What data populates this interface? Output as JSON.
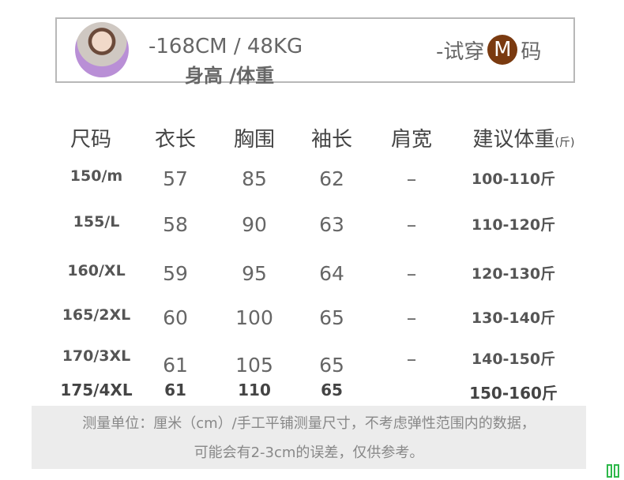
{
  "model": {
    "height_weight": "-168CM / 48KG",
    "label": "身高 /体重",
    "try_prefix": "-试穿",
    "try_size": "M",
    "try_suffix": "码",
    "badge_color": "#7a3a10"
  },
  "table": {
    "headers": [
      "尺码",
      "衣长",
      "胸围",
      "袖长",
      "肩宽",
      "建议体重"
    ],
    "weight_unit": "(斤)",
    "rows": [
      [
        "150/m",
        "57",
        "85",
        "62",
        "–",
        "100-110斤"
      ],
      [
        "155/L",
        "58",
        "90",
        "63",
        "–",
        "110-120斤"
      ],
      [
        "160/XL",
        "59",
        "95",
        "64",
        "–",
        "120-130斤"
      ],
      [
        "165/2XL",
        "60",
        "100",
        "65",
        "–",
        "130-140斤"
      ],
      [
        "170/3XL",
        "61",
        "105",
        "65",
        "–",
        "140-150斤"
      ],
      [
        "175/4XL",
        "61",
        "110",
        "65",
        "",
        "150-160斤"
      ]
    ]
  },
  "note": {
    "line1": "测量单位：厘米（cm）/手工平铺测量尺寸，不考虑弹性范围内的数据，",
    "line2": "可能会有2-3cm的误差，仅供参考。"
  }
}
